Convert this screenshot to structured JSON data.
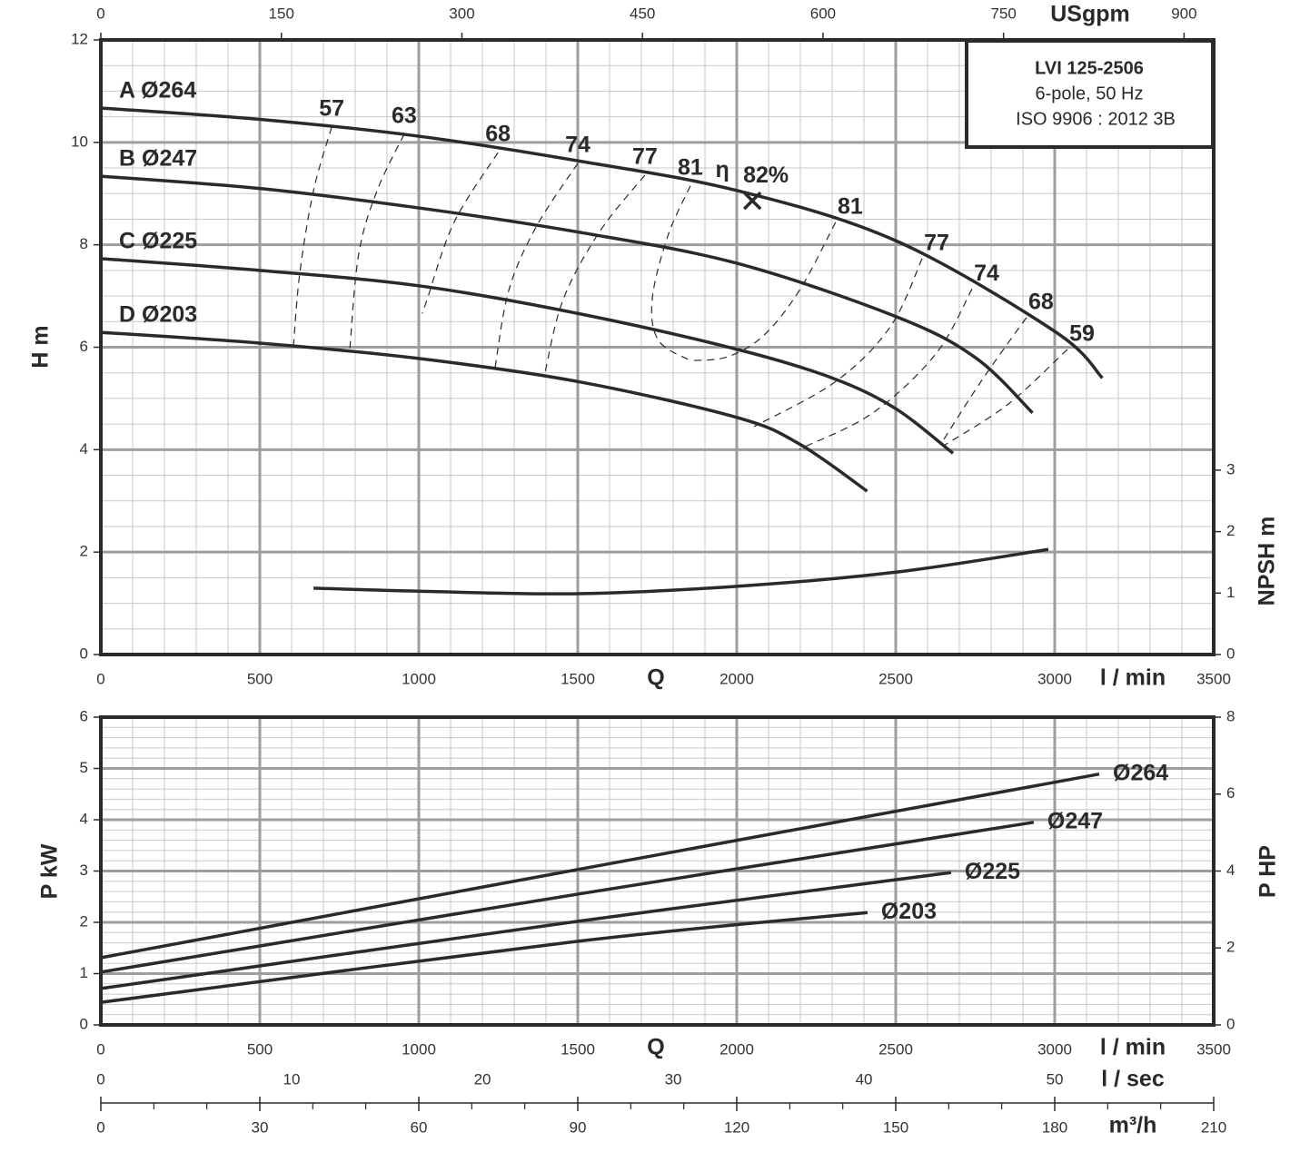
{
  "title_box": {
    "model": "LVI 125-2506",
    "line2": "6-pole, 50 Hz",
    "line3": "ISO 9906 : 2012 3B"
  },
  "chart_data": [
    {
      "type": "line",
      "x_label": "Q",
      "x_unit_label": "l / min",
      "y_label": "H m",
      "y2_label": "NPSH m",
      "x2_label": "USgpm",
      "xlim": [
        0,
        3500
      ],
      "xticks": [
        0,
        500,
        1000,
        1500,
        2000,
        2500,
        3000,
        3500
      ],
      "ylim": [
        0,
        12
      ],
      "yticks": [
        0,
        2,
        4,
        6,
        8,
        10,
        12
      ],
      "y2lim": [
        0,
        10
      ],
      "y2ticks": [
        0,
        1,
        2,
        3
      ],
      "x2lim": [
        0,
        924.6
      ],
      "x2ticks": [
        0,
        150,
        300,
        450,
        600,
        750,
        900
      ],
      "grid": true,
      "series": [
        {
          "name": "A Ø264",
          "color": "#2a2a2a",
          "x": [
            0,
            500,
            1000,
            1500,
            2000,
            2500,
            3000,
            3150
          ],
          "values": [
            10.67,
            10.45,
            10.12,
            9.64,
            9.06,
            8.08,
            6.31,
            5.4
          ]
        },
        {
          "name": "B Ø247",
          "color": "#2a2a2a",
          "x": [
            0,
            500,
            1000,
            1500,
            2000,
            2500,
            2750,
            2930
          ],
          "values": [
            9.34,
            9.1,
            8.72,
            8.25,
            7.64,
            6.6,
            5.8,
            4.72
          ]
        },
        {
          "name": "C Ø225",
          "color": "#2a2a2a",
          "x": [
            0,
            500,
            1000,
            1500,
            2000,
            2300,
            2500,
            2680
          ],
          "values": [
            7.73,
            7.5,
            7.2,
            6.66,
            5.96,
            5.4,
            4.8,
            3.93
          ]
        },
        {
          "name": "D Ø203",
          "color": "#2a2a2a",
          "x": [
            0,
            500,
            1000,
            1500,
            2000,
            2200,
            2410
          ],
          "values": [
            6.29,
            6.08,
            5.78,
            5.33,
            4.63,
            4.1,
            3.19
          ]
        },
        {
          "axis": "y2",
          "color": "#2a2a2a",
          "x": [
            669,
            1000,
            1500,
            2000,
            2500,
            2980
          ],
          "values": [
            1.08,
            1.03,
            0.99,
            1.11,
            1.34,
            1.71
          ]
        }
      ],
      "efficiency_contours": [
        {
          "efficiency": 57,
          "x": [
            726,
            669,
            626,
            606
          ],
          "values": [
            10.3,
            9.06,
            7.46,
            6.04
          ]
        },
        {
          "efficiency": 63,
          "x": [
            954,
            869,
            811,
            783
          ],
          "values": [
            10.16,
            9.06,
            7.82,
            5.96
          ]
        },
        {
          "efficiency": 68,
          "x": [
            1249,
            1111,
            1026,
            1011
          ],
          "values": [
            9.8,
            8.44,
            6.93,
            6.66
          ]
        },
        {
          "efficiency": 74,
          "x": [
            1500,
            1369,
            1283,
            1240
          ],
          "values": [
            9.59,
            8.35,
            7.11,
            5.6
          ]
        },
        {
          "efficiency": 77,
          "x": [
            1711,
            1569,
            1454,
            1397
          ],
          "values": [
            9.36,
            8.26,
            6.93,
            5.51
          ]
        },
        {
          "efficiency": 81,
          "x": [
            1854,
            1783,
            1734,
            1754,
            1854
          ],
          "values": [
            9.15,
            8.17,
            6.93,
            6.13,
            5.74
          ]
        },
        {
          "efficiency": 81,
          "x": [
            2311,
            2197,
            2083,
            1969,
            1854
          ],
          "values": [
            8.44,
            7.11,
            6.22,
            5.81,
            5.74
          ]
        },
        {
          "efficiency": 77,
          "x": [
            2583,
            2483,
            2311,
            2054
          ],
          "values": [
            7.73,
            6.4,
            5.33,
            4.45
          ]
        },
        {
          "efficiency": 74,
          "x": [
            2740,
            2626,
            2426,
            2197
          ],
          "values": [
            7.14,
            5.87,
            4.71,
            4.01
          ]
        },
        {
          "efficiency": 68,
          "x": [
            2911,
            2769,
            2640
          ],
          "values": [
            6.58,
            5.34,
            4.09
          ]
        },
        {
          "efficiency": 59,
          "x": [
            3040,
            2854,
            2654
          ],
          "values": [
            5.96,
            4.89,
            4.09
          ]
        }
      ],
      "bep": {
        "x": 2049,
        "value": 8.86,
        "symbol": "η",
        "label": "82%"
      }
    },
    {
      "type": "line",
      "x_label": "Q",
      "x_unit_label": "l / min",
      "y_label": "P kW",
      "y2_label": "P HP",
      "xlim": [
        0,
        3500
      ],
      "xticks": [
        0,
        500,
        1000,
        1500,
        2000,
        2500,
        3000,
        3500
      ],
      "ylim": [
        0,
        6
      ],
      "yticks": [
        0,
        1,
        2,
        3,
        4,
        5,
        6
      ],
      "y2lim": [
        0,
        8
      ],
      "y2ticks": [
        0,
        2,
        4,
        6,
        8
      ],
      "grid": true,
      "lsec_axis": {
        "label": "l / sec",
        "lim": [
          0,
          58.33
        ],
        "ticks": [
          0,
          10,
          20,
          30,
          40,
          50
        ]
      },
      "m3h_axis": {
        "label": "m³/h",
        "lim": [
          0,
          210
        ],
        "ticks": [
          0,
          30,
          60,
          90,
          120,
          150,
          180,
          210
        ]
      },
      "series": [
        {
          "name": "Ø264",
          "color": "#2a2a2a",
          "x": [
            0,
            1500,
            3140
          ],
          "values": [
            1.31,
            3.03,
            4.89
          ]
        },
        {
          "name": "Ø247",
          "color": "#2a2a2a",
          "x": [
            0,
            1500,
            2934
          ],
          "values": [
            1.03,
            2.55,
            3.95
          ]
        },
        {
          "name": "Ø225",
          "color": "#2a2a2a",
          "x": [
            0,
            1500,
            2674
          ],
          "values": [
            0.71,
            2.02,
            2.97
          ]
        },
        {
          "name": "Ø203",
          "color": "#2a2a2a",
          "x": [
            0,
            1500,
            2411
          ],
          "values": [
            0.44,
            1.63,
            2.19
          ]
        }
      ]
    }
  ]
}
